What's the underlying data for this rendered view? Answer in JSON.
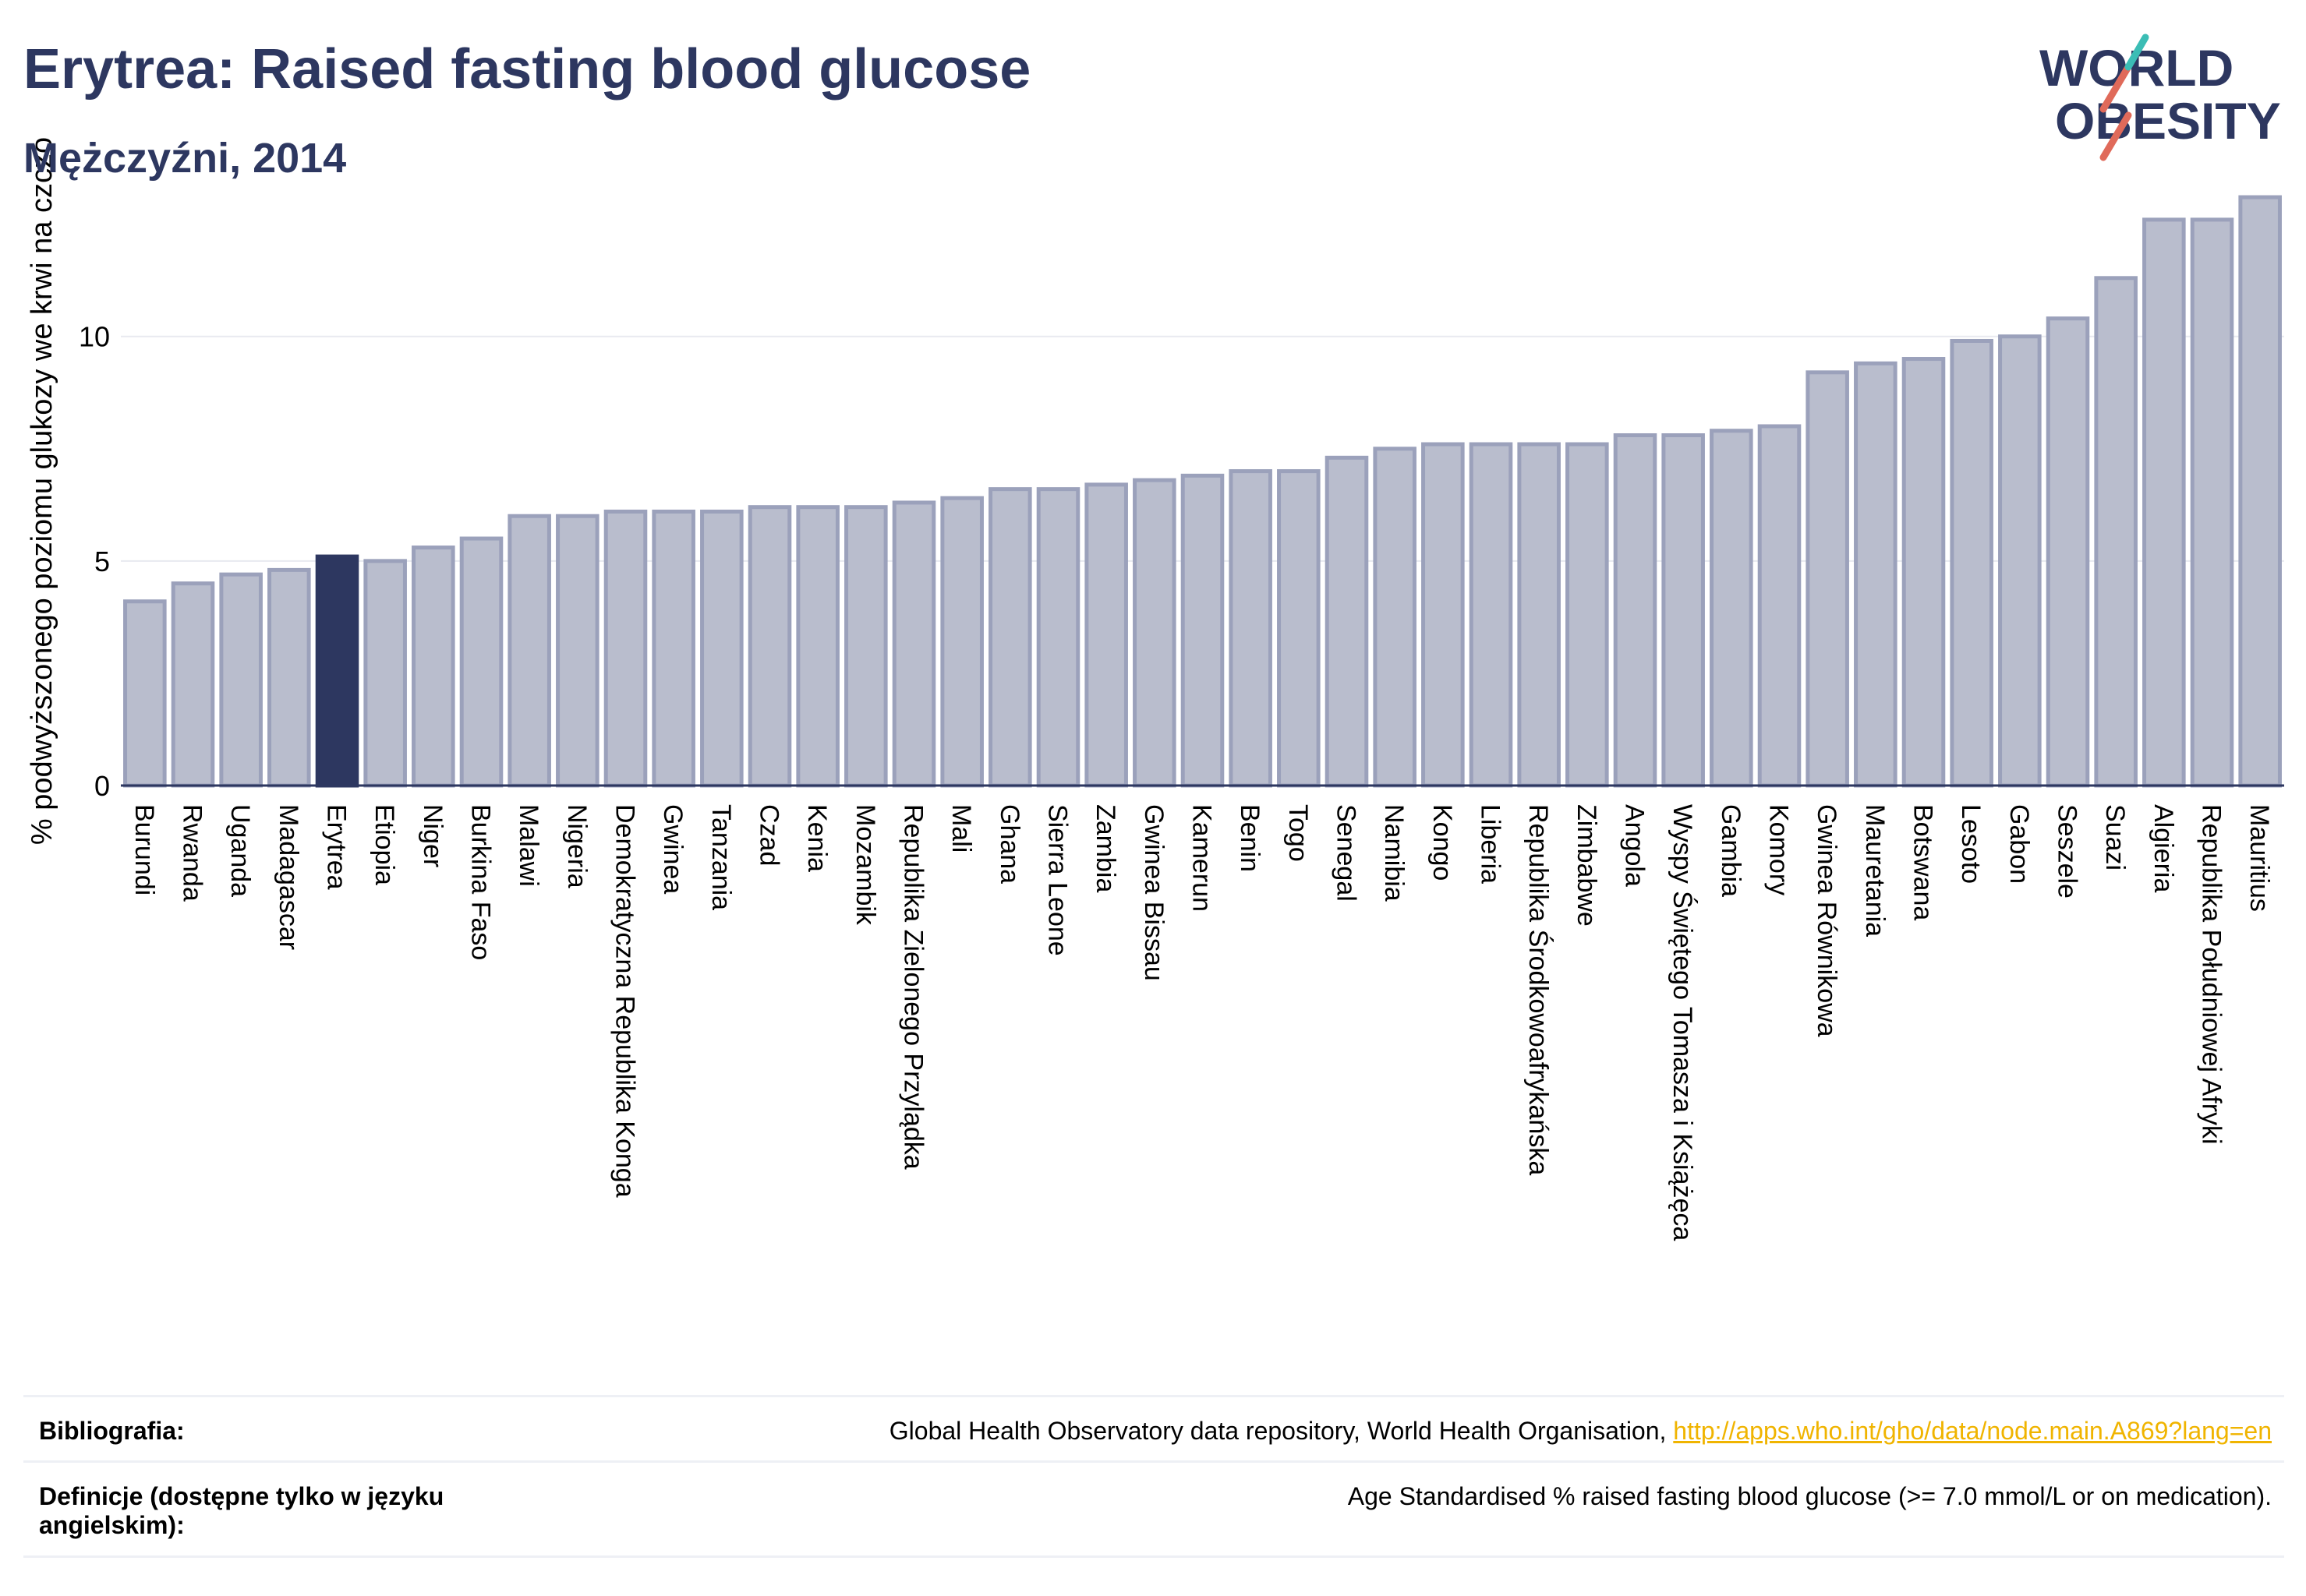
{
  "header": {
    "title": "Erytrea: Raised fasting blood glucose",
    "subtitle": "Mężczyźni, 2014"
  },
  "logo": {
    "line1": "WORLD",
    "line2": "OBESITY"
  },
  "colors": {
    "bar": "#b9bdcd",
    "bar_edge": "#9ba1bb",
    "highlight": "#2d3760",
    "link": "#f0b400",
    "title": "#2d3760"
  },
  "chart_data": {
    "type": "bar",
    "ylabel": "% podwyższonego poziomu glukozy we krwi na czczo",
    "ylim": [
      0,
      13.5
    ],
    "yticks": [
      0,
      5,
      10
    ],
    "grid": true,
    "highlight": "Erytrea",
    "categories": [
      "Burundi",
      "Rwanda",
      "Uganda",
      "Madagascar",
      "Erytrea",
      "Etiopia",
      "Niger",
      "Burkina Faso",
      "Malawi",
      "Nigeria",
      "Demokratyczna Republika Konga",
      "Gwinea",
      "Tanzania",
      "Czad",
      "Kenia",
      "Mozambik",
      "Republika Zielonego Przylądka",
      "Mali",
      "Ghana",
      "Sierra Leone",
      "Zambia",
      "Gwinea Bissau",
      "Kamerun",
      "Benin",
      "Togo",
      "Senegal",
      "Namibia",
      "Kongo",
      "Liberia",
      "Republika Środkowoafrykańska",
      "Zimbabwe",
      "Angola",
      "Wyspy Świętego Tomasza i Książęca",
      "Gambia",
      "Komory",
      "Gwinea Równikowa",
      "Mauretania",
      "Botswana",
      "Lesoto",
      "Gabon",
      "Seszele",
      "Suazi",
      "Algieria",
      "Republika Południowej Afryki",
      "Mauritius"
    ],
    "values": [
      4.1,
      4.5,
      4.7,
      4.8,
      5.1,
      5.0,
      5.3,
      5.5,
      6.0,
      6.0,
      6.1,
      6.1,
      6.1,
      6.2,
      6.2,
      6.2,
      6.3,
      6.4,
      6.6,
      6.6,
      6.7,
      6.8,
      6.9,
      7.0,
      7.0,
      7.3,
      7.5,
      7.6,
      7.6,
      7.6,
      7.6,
      7.8,
      7.8,
      7.9,
      8.0,
      9.2,
      9.4,
      9.5,
      9.9,
      10.0,
      10.4,
      11.3,
      12.6,
      12.6,
      13.1
    ]
  },
  "footer": {
    "bibliography_label": "Bibliografia:",
    "bibliography_text": "Global Health Observatory data repository, World Health Organisation, ",
    "bibliography_link": "http://apps.who.int/gho/data/node.main.A869?lang=en",
    "definitions_label": "Definicje (dostępne tylko w języku angielskim):",
    "definitions_text": "Age Standardised % raised fasting blood glucose (>= 7.0 mmol/L or on medication)."
  }
}
